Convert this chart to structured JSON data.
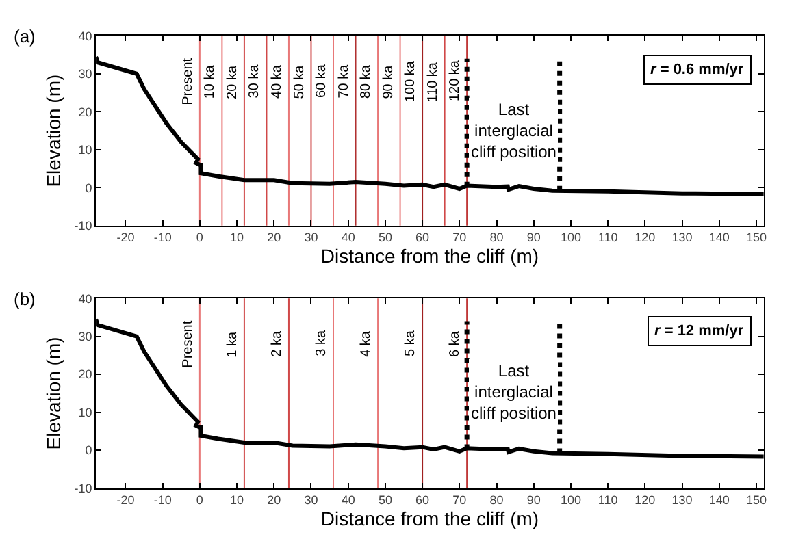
{
  "chart_data": [
    {
      "type": "line",
      "xlabel": "Distance from the cliff (m)",
      "ylabel": "Elevation (m)",
      "xlim": [
        -28,
        152
      ],
      "xticks": [
        -20,
        -10,
        0,
        10,
        20,
        30,
        40,
        50,
        60,
        70,
        80,
        90,
        100,
        110,
        120,
        130,
        140,
        150
      ],
      "ylim": [
        -10,
        40
      ],
      "yticks": [
        -10,
        0,
        10,
        20,
        30,
        40
      ],
      "grid": false,
      "marker": "none",
      "series": [
        {
          "color": "#000000",
          "line_style": "solid",
          "x": [
            -28,
            -27.5,
            -17,
            -15,
            -9,
            -5,
            -1,
            -0.5,
            -1,
            0,
            0.3,
            0.3,
            5,
            12,
            20,
            25,
            35,
            42,
            50,
            55,
            60,
            63,
            66,
            70,
            72,
            80,
            83,
            83.2,
            86,
            90,
            95,
            110,
            130,
            152
          ],
          "values": [
            34.5,
            33,
            30,
            26,
            17,
            12,
            8,
            7.5,
            6.5,
            6,
            6,
            3.8,
            3,
            2,
            2,
            1.2,
            1,
            1.5,
            1,
            0.5,
            0.8,
            0.2,
            0.8,
            -0.3,
            0.5,
            0.2,
            0.3,
            -0.5,
            0.4,
            -0.3,
            -0.8,
            -1,
            -1.5,
            -1.7
          ]
        },
        {
          "color": "#000000",
          "line_style": "dotted",
          "x": [
            72,
            72
          ],
          "values": [
            0.3,
            34
          ]
        },
        {
          "color": "#000000",
          "line_style": "dotted",
          "x": [
            97,
            97
          ],
          "values": [
            -0.8,
            34
          ]
        }
      ],
      "ref_lines": [
        {
          "axis": "x",
          "value": 0,
          "label": "Present",
          "color": "#e87878"
        },
        {
          "axis": "x",
          "value": 6,
          "label": "10 ka",
          "color": "#e87878"
        },
        {
          "axis": "x",
          "value": 12,
          "label": "20 ka",
          "color": "#d04848"
        },
        {
          "axis": "x",
          "value": 18,
          "label": "30 ka",
          "color": "#d04848"
        },
        {
          "axis": "x",
          "value": 24,
          "label": "40 ka",
          "color": "#e87878"
        },
        {
          "axis": "x",
          "value": 30,
          "label": "50 ka",
          "color": "#d04848"
        },
        {
          "axis": "x",
          "value": 36,
          "label": "60 ka",
          "color": "#e87878"
        },
        {
          "axis": "x",
          "value": 42,
          "label": "70 ka",
          "color": "#b03030"
        },
        {
          "axis": "x",
          "value": 48,
          "label": "80 ka",
          "color": "#e87878"
        },
        {
          "axis": "x",
          "value": 54,
          "label": "90 ka",
          "color": "#e87878"
        },
        {
          "axis": "x",
          "value": 60,
          "label": "100 ka",
          "color": "#a02020"
        },
        {
          "axis": "x",
          "value": 66,
          "label": "110 ka",
          "color": "#d04848"
        },
        {
          "axis": "x",
          "value": 72,
          "label": "120 ka",
          "color": "#c03838"
        }
      ],
      "annotations": [
        "(a)",
        "r = 0.6 mm/yr",
        "Last interglacial cliff position"
      ]
    },
    {
      "type": "line",
      "xlabel": "Distance from the cliff (m)",
      "ylabel": "Elevation (m)",
      "xlim": [
        -28,
        152
      ],
      "xticks": [
        -20,
        -10,
        0,
        10,
        20,
        30,
        40,
        50,
        60,
        70,
        80,
        90,
        100,
        110,
        120,
        130,
        140,
        150
      ],
      "ylim": [
        -10,
        40
      ],
      "yticks": [
        -10,
        0,
        10,
        20,
        30,
        40
      ],
      "grid": false,
      "marker": "none",
      "series": [
        {
          "color": "#000000",
          "line_style": "solid",
          "x": [
            -28,
            -27.5,
            -17,
            -15,
            -9,
            -5,
            -1,
            -0.5,
            -1,
            0,
            0.3,
            0.3,
            5,
            12,
            20,
            25,
            35,
            42,
            50,
            55,
            60,
            63,
            66,
            70,
            72,
            80,
            83,
            83.2,
            86,
            90,
            95,
            110,
            130,
            152
          ],
          "values": [
            34.5,
            33,
            30,
            26,
            17,
            12,
            8,
            7.5,
            6.5,
            6,
            6,
            3.8,
            3,
            2,
            2,
            1.2,
            1,
            1.5,
            1,
            0.5,
            0.8,
            0.2,
            0.8,
            -0.3,
            0.5,
            0.2,
            0.3,
            -0.5,
            0.4,
            -0.3,
            -0.8,
            -1,
            -1.5,
            -1.7
          ]
        },
        {
          "color": "#000000",
          "line_style": "dotted",
          "x": [
            72,
            72
          ],
          "values": [
            0.3,
            34
          ]
        },
        {
          "color": "#000000",
          "line_style": "dotted",
          "x": [
            97,
            97
          ],
          "values": [
            -0.8,
            34
          ]
        }
      ],
      "ref_lines": [
        {
          "axis": "x",
          "value": 0,
          "label": "Present",
          "color": "#e87878"
        },
        {
          "axis": "x",
          "value": 12,
          "label": "1 ka",
          "color": "#d04848"
        },
        {
          "axis": "x",
          "value": 24,
          "label": "2 ka",
          "color": "#d04848"
        },
        {
          "axis": "x",
          "value": 36,
          "label": "3 ka",
          "color": "#e87878"
        },
        {
          "axis": "x",
          "value": 48,
          "label": "4 ka",
          "color": "#e87878"
        },
        {
          "axis": "x",
          "value": 60,
          "label": "5 ka",
          "color": "#a02020"
        },
        {
          "axis": "x",
          "value": 72,
          "label": "6 ka",
          "color": "#c03838"
        }
      ],
      "annotations": [
        "(b)",
        "r = 12 mm/yr",
        "Last interglacial cliff position"
      ]
    }
  ]
}
